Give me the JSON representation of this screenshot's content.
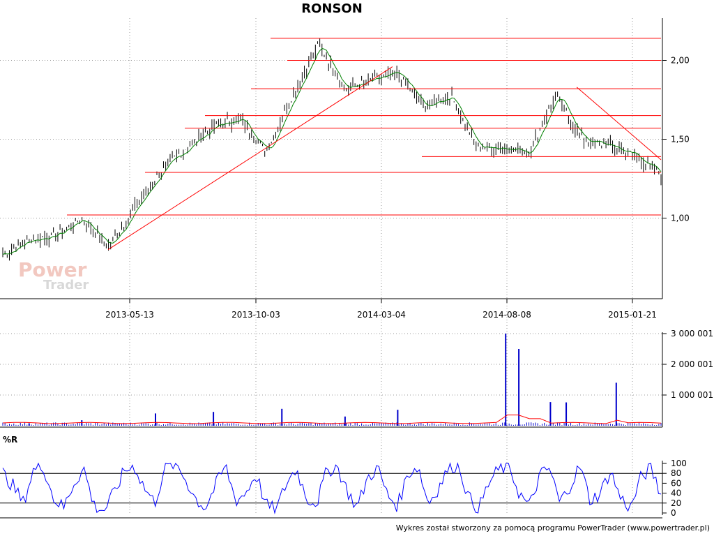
{
  "title": "RONSON",
  "footer": "Wykres został stworzony za pomocą programu PowerTrader (www.powertrader.pl)",
  "watermark": {
    "line1": "Power",
    "line2": "Trader"
  },
  "colors": {
    "support": "#ff0000",
    "candles": "#000000",
    "ma": "#008000",
    "volume": "#0000cc",
    "volume_ma": "#ff0000",
    "wr": "#0000ff"
  },
  "chart_data": [
    {
      "type": "line",
      "name": "price",
      "title": "RONSON",
      "x_ticks": [
        "2013-05-13",
        "2013-10-03",
        "2014-03-04",
        "2014-08-08",
        "2015-01-21"
      ],
      "y_ticks": [
        "1,00",
        "1,50",
        "2,00"
      ],
      "ylim": [
        0.7,
        2.4
      ],
      "xlim": [
        0,
        125
      ],
      "grid": true,
      "x": [
        0,
        5,
        10,
        15,
        20,
        25,
        30,
        35,
        40,
        45,
        50,
        55,
        60,
        65,
        70,
        75,
        80,
        85,
        90,
        95,
        100,
        105,
        110,
        115,
        120,
        125
      ],
      "close": [
        0.77,
        0.86,
        0.89,
        1.0,
        0.82,
        1.06,
        1.3,
        1.45,
        1.58,
        1.63,
        1.42,
        1.78,
        2.1,
        1.82,
        1.87,
        1.92,
        1.7,
        1.78,
        1.45,
        1.45,
        1.42,
        1.78,
        1.5,
        1.46,
        1.4,
        1.27
      ],
      "horizontal_lines": [
        1.02,
        1.29,
        1.39,
        1.57,
        1.65,
        1.82,
        2.0,
        2.14
      ],
      "trend_lines": [
        {
          "from": [
            20,
            0.8
          ],
          "to": [
            74,
            1.96
          ]
        },
        {
          "from": [
            109,
            1.83
          ],
          "to": [
            125,
            1.37
          ]
        }
      ]
    },
    {
      "type": "bar",
      "name": "volume",
      "y_ticks": [
        "1 000 001",
        "2 000 001",
        "3 000 001"
      ],
      "ylim": [
        0,
        3000001
      ],
      "spikes": [
        {
          "x": 5,
          "value": 80000
        },
        {
          "x": 15,
          "value": 180000
        },
        {
          "x": 29,
          "value": 400000
        },
        {
          "x": 40,
          "value": 450000
        },
        {
          "x": 53,
          "value": 550000
        },
        {
          "x": 65,
          "value": 300000
        },
        {
          "x": 75,
          "value": 520000
        },
        {
          "x": 95.5,
          "value": 3000000
        },
        {
          "x": 98,
          "value": 2500000
        },
        {
          "x": 104,
          "value": 770000
        },
        {
          "x": 107,
          "value": 760000
        },
        {
          "x": 116.5,
          "value": 1400000
        }
      ]
    },
    {
      "type": "line",
      "name": "%R",
      "label": "%R",
      "y_ticks": [
        "0",
        "20",
        "40",
        "60",
        "80",
        "100"
      ],
      "ylim": [
        0,
        100
      ],
      "reference_lines": [
        20,
        80
      ],
      "values": [
        80,
        55,
        20,
        85,
        95,
        30,
        10,
        60,
        90,
        15,
        5,
        40,
        85,
        95,
        50,
        20,
        90,
        100,
        70,
        30,
        10,
        55,
        95,
        25,
        40,
        80,
        15,
        5,
        60,
        90,
        30,
        20,
        85,
        95,
        45,
        10,
        70,
        92,
        35,
        15,
        80,
        95,
        20,
        50,
        90,
        100,
        30,
        8,
        60,
        88,
        95,
        40,
        12,
        75,
        90,
        20,
        55,
        95,
        25,
        40,
        85,
        30,
        10,
        70,
        92,
        35
      ]
    }
  ]
}
